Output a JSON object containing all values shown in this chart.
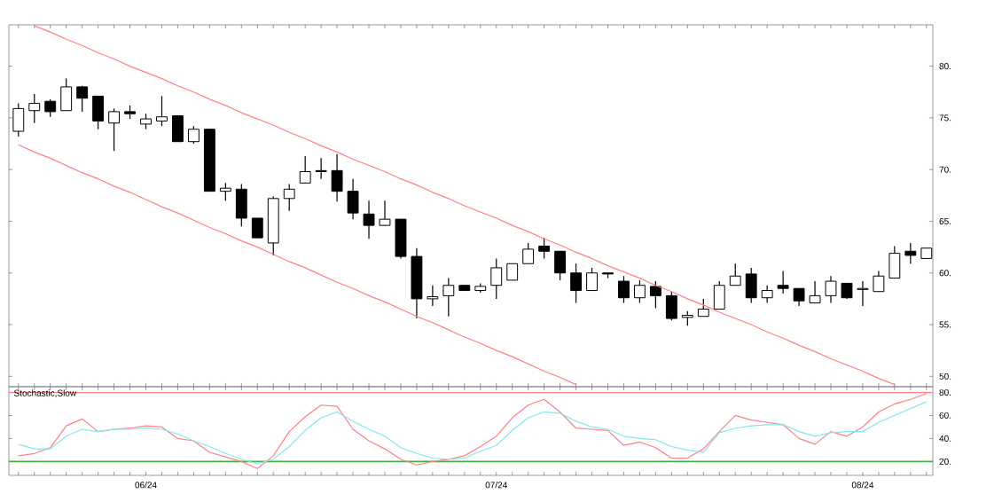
{
  "chart_data": [
    {
      "type": "candlestick",
      "categories": [
        null,
        null,
        null,
        null,
        null,
        null,
        null,
        null,
        null,
        null,
        null,
        null,
        null,
        null,
        null,
        null,
        null,
        null,
        null,
        null,
        null,
        null,
        null,
        null,
        null,
        null,
        null,
        null,
        null,
        null,
        null,
        null,
        null,
        null,
        null,
        null,
        null,
        null,
        null,
        null,
        null,
        null,
        null,
        null,
        null,
        null,
        null,
        null,
        null,
        null,
        null,
        null,
        null,
        null,
        null,
        null,
        null,
        null
      ],
      "ohlc": [
        [
          73.7,
          76.4,
          73.2,
          75.9
        ],
        [
          75.7,
          77.3,
          74.5,
          76.4
        ],
        [
          76.6,
          76.8,
          75.1,
          75.6
        ],
        [
          75.7,
          78.8,
          75.7,
          78.0
        ],
        [
          78.0,
          78.1,
          75.6,
          76.9
        ],
        [
          77.1,
          77.1,
          73.9,
          74.7
        ],
        [
          74.5,
          75.9,
          71.8,
          75.6
        ],
        [
          75.6,
          76.2,
          74.9,
          75.4
        ],
        [
          74.4,
          75.4,
          73.9,
          74.9
        ],
        [
          74.7,
          77.1,
          74.2,
          75.1
        ],
        [
          75.2,
          75.2,
          72.7,
          72.7
        ],
        [
          72.7,
          74.2,
          72.5,
          73.9
        ],
        [
          73.9,
          73.9,
          67.9,
          67.9
        ],
        [
          67.9,
          68.7,
          67.0,
          68.2
        ],
        [
          68.1,
          68.6,
          64.5,
          65.3
        ],
        [
          65.3,
          65.3,
          63.4,
          63.4
        ],
        [
          62.9,
          67.4,
          61.7,
          67.2
        ],
        [
          67.2,
          68.6,
          66.0,
          68.1
        ],
        [
          68.7,
          71.3,
          68.7,
          69.8
        ],
        [
          69.9,
          71.1,
          69.1,
          69.8
        ],
        [
          69.9,
          71.5,
          66.9,
          67.9
        ],
        [
          67.9,
          69.1,
          65.2,
          65.8
        ],
        [
          65.7,
          67.0,
          63.3,
          64.6
        ],
        [
          64.6,
          67.0,
          64.6,
          65.2
        ],
        [
          65.2,
          65.2,
          61.4,
          61.6
        ],
        [
          61.6,
          62.4,
          55.6,
          57.5
        ],
        [
          57.5,
          58.8,
          56.8,
          57.7
        ],
        [
          57.8,
          59.5,
          55.8,
          58.8
        ],
        [
          58.8,
          58.8,
          58.3,
          58.3
        ],
        [
          58.3,
          59.0,
          58.1,
          58.7
        ],
        [
          58.8,
          61.4,
          57.5,
          60.5
        ],
        [
          59.3,
          60.9,
          59.3,
          60.9
        ],
        [
          60.9,
          62.9,
          60.9,
          62.3
        ],
        [
          62.6,
          63.4,
          61.4,
          62.1
        ],
        [
          62.1,
          62.1,
          59.3,
          60.0
        ],
        [
          60.0,
          60.9,
          57.1,
          58.3
        ],
        [
          58.3,
          60.5,
          58.3,
          60.0
        ],
        [
          60.0,
          60.0,
          59.5,
          59.9
        ],
        [
          59.2,
          59.7,
          57.1,
          57.6
        ],
        [
          57.6,
          59.3,
          57.1,
          58.8
        ],
        [
          58.7,
          59.2,
          56.6,
          57.8
        ],
        [
          57.8,
          58.2,
          55.4,
          55.6
        ],
        [
          55.7,
          56.3,
          54.9,
          55.9
        ],
        [
          55.8,
          57.5,
          55.8,
          56.5
        ],
        [
          56.5,
          59.2,
          56.5,
          58.8
        ],
        [
          58.8,
          60.9,
          58.8,
          59.7
        ],
        [
          59.9,
          60.5,
          57.1,
          57.6
        ],
        [
          57.6,
          58.8,
          57.1,
          58.3
        ],
        [
          58.8,
          60.2,
          58.0,
          58.5
        ],
        [
          58.5,
          58.5,
          56.8,
          57.3
        ],
        [
          57.1,
          59.2,
          57.1,
          57.8
        ],
        [
          57.8,
          59.7,
          57.1,
          59.2
        ],
        [
          59.0,
          59.0,
          57.5,
          57.6
        ],
        [
          58.4,
          59.2,
          56.8,
          58.5
        ],
        [
          58.2,
          60.2,
          58.2,
          59.7
        ],
        [
          59.5,
          62.6,
          59.5,
          61.9
        ],
        [
          62.1,
          62.9,
          60.9,
          61.7
        ],
        [
          61.4,
          62.4,
          61.4,
          62.4
        ]
      ],
      "series": [
        {
          "type": "line",
          "color": "#ff8080",
          "values": [
            null,
            83.9,
            83.3,
            82.6,
            82.0,
            81.3,
            80.7,
            80.0,
            79.4,
            78.8,
            78.1,
            77.5,
            76.8,
            76.2,
            75.5,
            74.9,
            74.3,
            73.6,
            73.0,
            72.3,
            71.7,
            71.0,
            70.4,
            69.8,
            69.1,
            68.5,
            67.8,
            67.2,
            66.5,
            65.9,
            65.3,
            64.6,
            64.0,
            63.3,
            62.7,
            62.0,
            61.4,
            60.7,
            60.1,
            59.5,
            58.8,
            58.2,
            57.5,
            56.9,
            56.2,
            55.6,
            55.0,
            54.3,
            53.7,
            53.0,
            52.4,
            51.7,
            51.1,
            50.5,
            49.8,
            49.2,
            null,
            null
          ]
        },
        {
          "type": "line",
          "color": "#ff8080",
          "values": [
            72.4,
            71.7,
            71.1,
            70.4,
            69.7,
            69.1,
            68.4,
            67.8,
            67.1,
            66.4,
            65.8,
            65.1,
            64.4,
            63.8,
            63.1,
            62.5,
            61.8,
            61.1,
            60.5,
            59.8,
            59.1,
            58.5,
            57.8,
            57.2,
            56.5,
            55.8,
            55.2,
            54.5,
            53.8,
            53.2,
            52.5,
            51.9,
            51.2,
            50.5,
            49.9,
            49.2,
            null,
            null,
            null,
            null,
            null,
            null,
            null,
            null,
            null,
            null,
            null,
            null,
            null,
            null,
            null,
            null,
            null,
            null,
            null,
            null,
            null,
            null
          ]
        }
      ],
      "ylim": [
        49,
        84
      ],
      "yticks": [
        {
          "value": 50,
          "label": "50."
        },
        {
          "value": 55,
          "label": "55."
        },
        {
          "value": 60,
          "label": "60."
        },
        {
          "value": 65,
          "label": "65."
        },
        {
          "value": 70,
          "label": "70."
        },
        {
          "value": 75,
          "label": "75."
        },
        {
          "value": 80,
          "label": "80."
        }
      ]
    },
    {
      "type": "line",
      "title": "Stochastic,Slow",
      "categories": [
        null,
        null,
        null,
        null,
        null,
        null,
        null,
        null,
        "06/24",
        null,
        null,
        null,
        null,
        null,
        null,
        null,
        null,
        null,
        null,
        null,
        null,
        null,
        null,
        null,
        null,
        null,
        null,
        null,
        null,
        null,
        "07/24",
        null,
        null,
        null,
        null,
        null,
        null,
        null,
        null,
        null,
        null,
        null,
        null,
        null,
        null,
        null,
        null,
        null,
        null,
        null,
        null,
        null,
        null,
        "08/24",
        null,
        null,
        null,
        null
      ],
      "series": [
        {
          "color": "#ff8080",
          "values": [
            25,
            27,
            32,
            51,
            57,
            46,
            48,
            49,
            51,
            50,
            40,
            38,
            28,
            24,
            20,
            14,
            25,
            46,
            59,
            69,
            68,
            48,
            38,
            31,
            22,
            17,
            20,
            22,
            25,
            33,
            42,
            58,
            69,
            74,
            63,
            49,
            48,
            47,
            34,
            37,
            32,
            23,
            23,
            31,
            46,
            60,
            56,
            54,
            52,
            40,
            35,
            46,
            42,
            50,
            63,
            70,
            74,
            79
          ]
        },
        {
          "color": "#80e8f0",
          "values": [
            35,
            31,
            31,
            42,
            48,
            46,
            48,
            48,
            49,
            48,
            44,
            38,
            33,
            27,
            22,
            18,
            22,
            33,
            47,
            58,
            63,
            55,
            48,
            42,
            32,
            27,
            23,
            22,
            23,
            29,
            34,
            47,
            58,
            63,
            62,
            55,
            50,
            48,
            42,
            40,
            39,
            33,
            30,
            28,
            45,
            49,
            51,
            52,
            52,
            46,
            42,
            45,
            46,
            46,
            54,
            60,
            66,
            72
          ]
        }
      ],
      "ref_lines": [
        {
          "axis": "y",
          "value": 80,
          "color": "#ff8080"
        },
        {
          "axis": "y",
          "value": 20,
          "color": "#44b044"
        }
      ],
      "ylim": [
        8,
        85
      ],
      "yticks": [
        {
          "value": 20,
          "label": "20."
        },
        {
          "value": 40,
          "label": "40."
        },
        {
          "value": 60,
          "label": "60."
        },
        {
          "value": 80,
          "label": "80."
        }
      ]
    }
  ]
}
